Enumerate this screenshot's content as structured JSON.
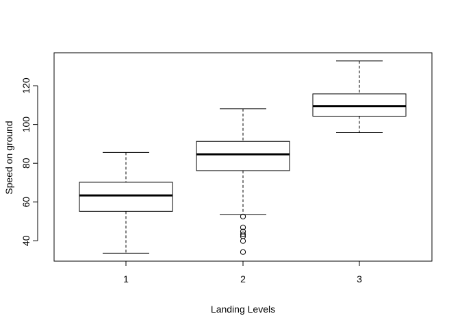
{
  "chart_data": {
    "type": "boxplot",
    "xlabel": "Landing Levels",
    "ylabel": "Speed on ground",
    "ylim": [
      29.5,
      137
    ],
    "y_ticks": [
      40,
      60,
      80,
      100,
      120
    ],
    "categories": [
      "1",
      "2",
      "3"
    ],
    "boxes": [
      {
        "category": "1",
        "whisker_low": 33.6,
        "q1": 55.2,
        "median": 63.4,
        "q3": 70.2,
        "whisker_high": 85.6,
        "outliers": []
      },
      {
        "category": "2",
        "whisker_low": 53.6,
        "q1": 76.2,
        "median": 84.6,
        "q3": 91.3,
        "whisker_high": 108.1,
        "outliers": [
          34.2,
          39.9,
          42.3,
          43.3,
          44.8,
          46.9,
          52.5
        ]
      },
      {
        "category": "3",
        "whisker_low": 95.8,
        "q1": 104.3,
        "median": 109.5,
        "q3": 115.8,
        "whisker_high": 132.8,
        "outliers": []
      }
    ],
    "grid": false,
    "legend": "none"
  }
}
